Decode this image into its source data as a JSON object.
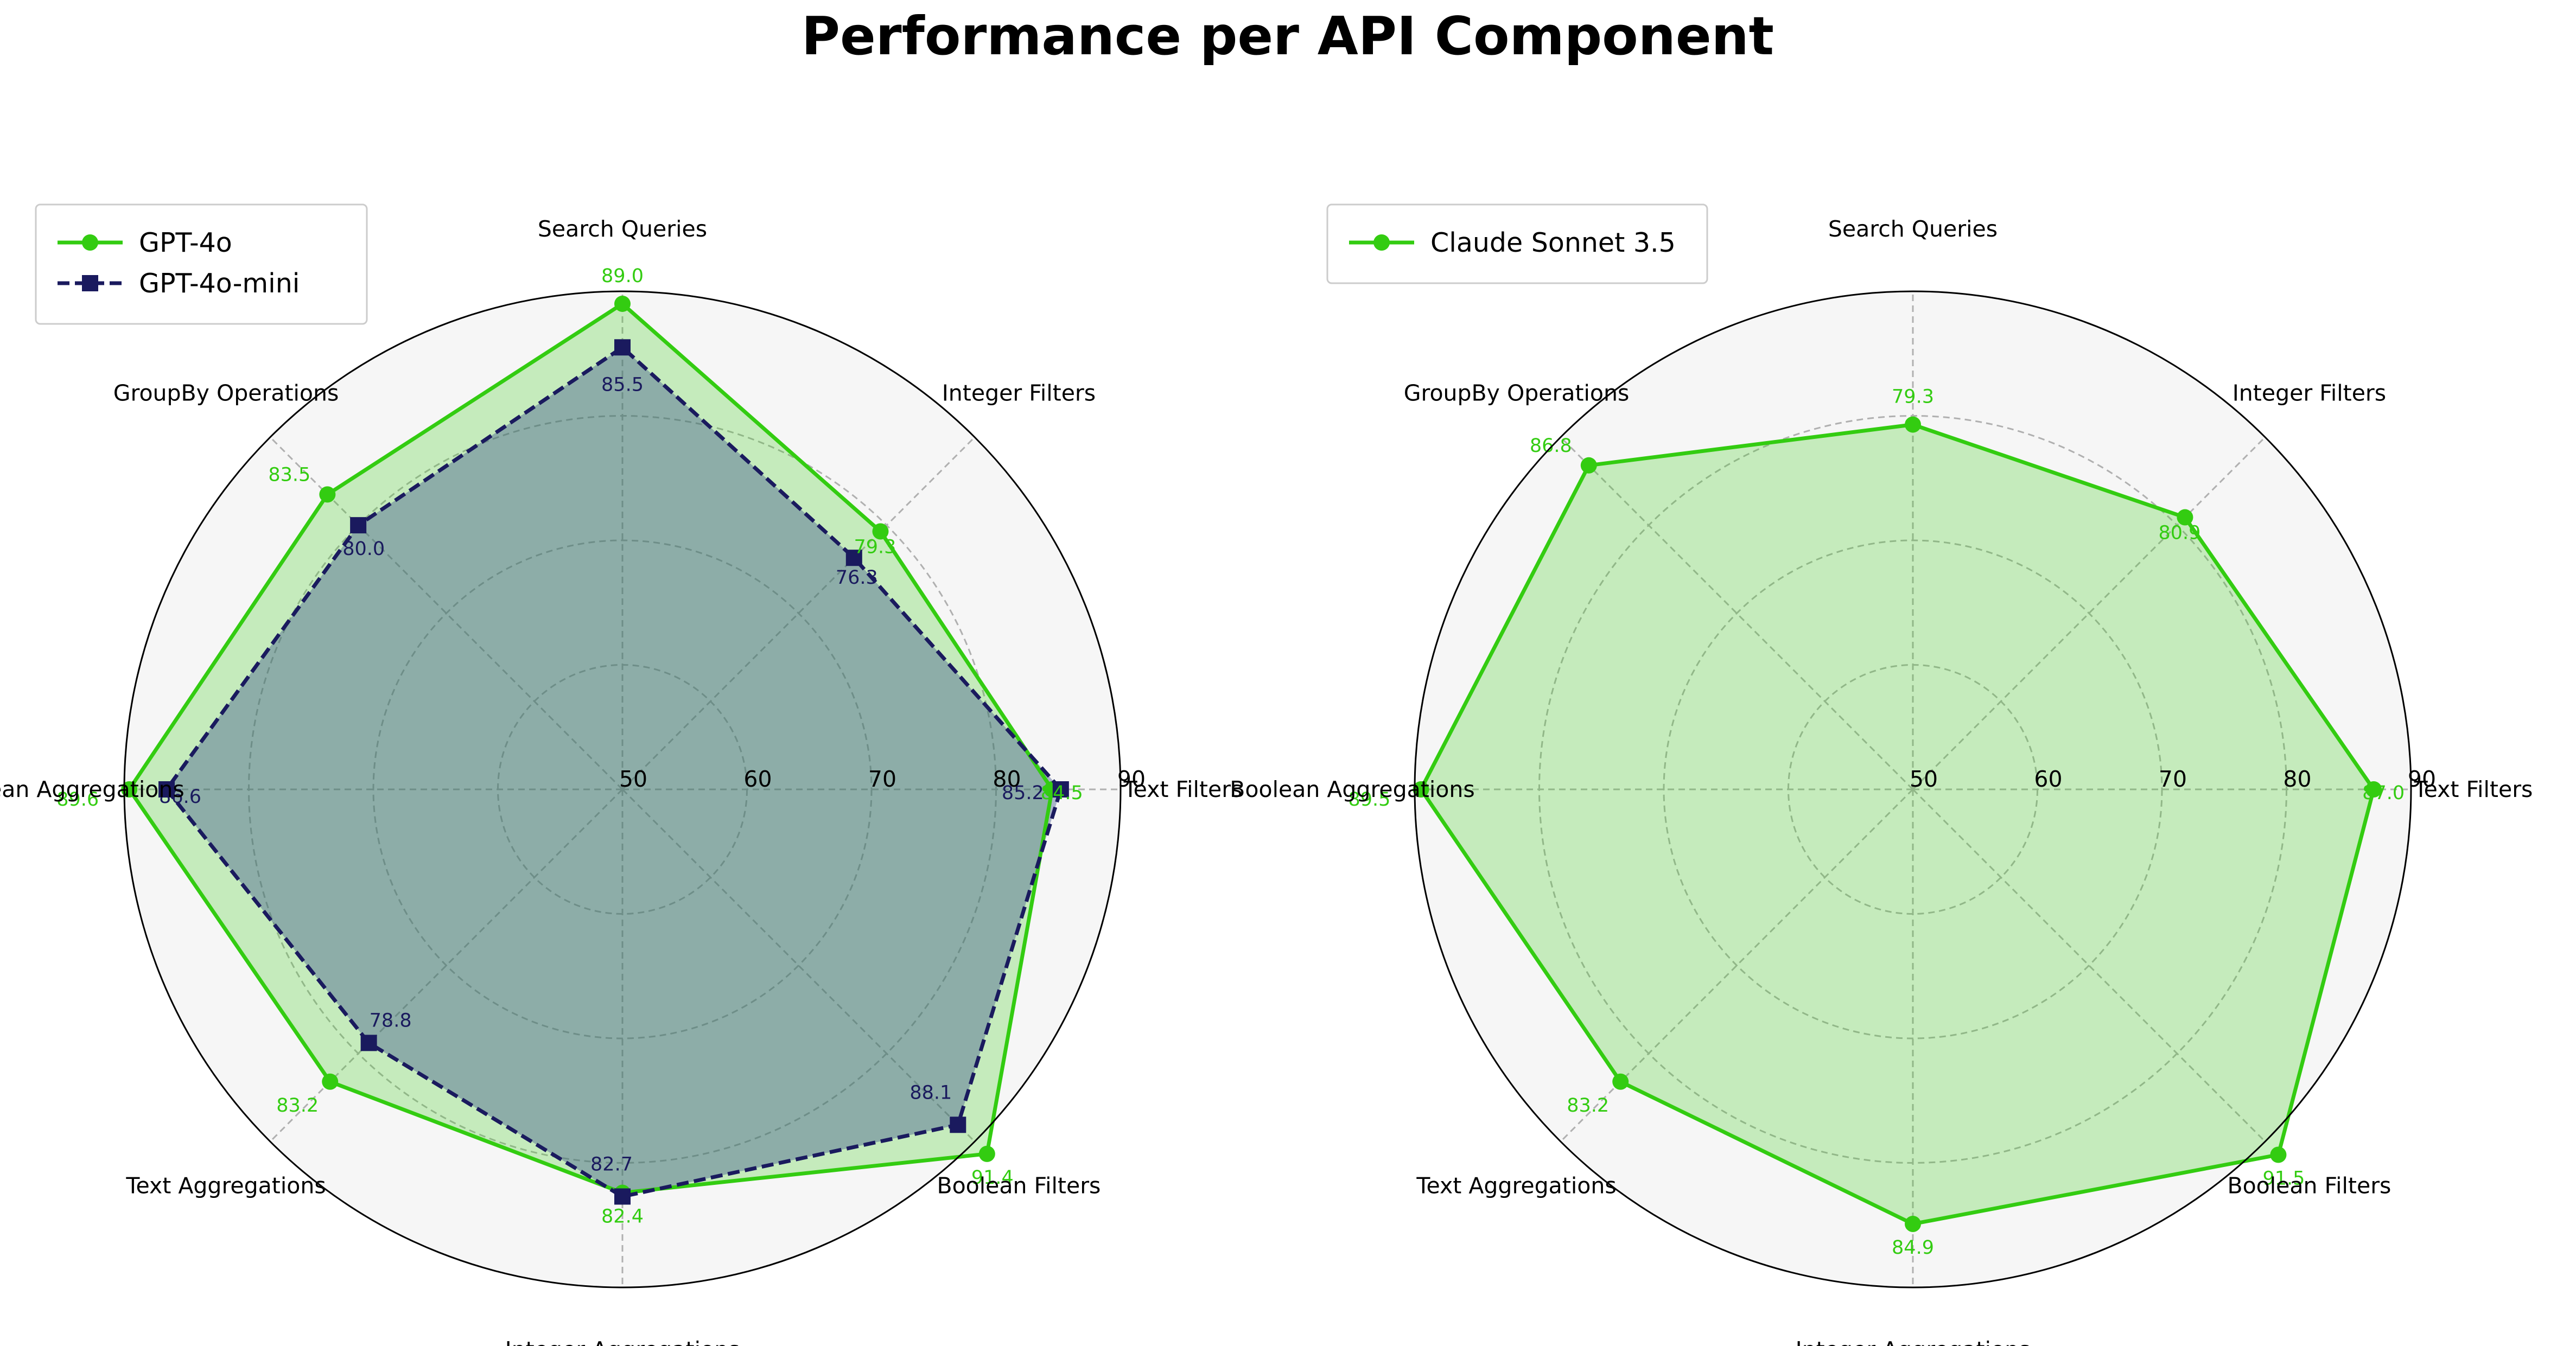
{
  "title": "Performance per API Component",
  "chart_data": [
    {
      "type": "radar",
      "categories": [
        "Text Filters",
        "Integer Filters",
        "Search Queries",
        "GroupBy Operations",
        "Boolean Aggregations",
        "Text Aggregations",
        "Integer Aggregations",
        "Boolean Filters"
      ],
      "rlim": [
        50,
        90
      ],
      "rticks": [
        50,
        60,
        70,
        80,
        90
      ],
      "grid": true,
      "legend": "top-left",
      "series": [
        {
          "name": "GPT-4o",
          "values": [
            84.5,
            79.3,
            89.0,
            83.5,
            89.6,
            83.2,
            82.4,
            91.4
          ],
          "labels": [
            "84.5",
            "79.3",
            "89.0",
            "83.5",
            "89.6",
            "83.2",
            "82.4",
            "91.4"
          ],
          "color": "#33cc11",
          "marker": "circle",
          "linestyle": "solid",
          "fill": "#33cc11"
        },
        {
          "name": "GPT-4o-mini",
          "values": [
            85.2,
            76.3,
            85.5,
            80.0,
            86.6,
            78.8,
            82.7,
            88.1
          ],
          "labels": [
            "85.2",
            "76.3",
            "85.5",
            "80.0",
            "86.6",
            "78.8",
            "82.7",
            "88.1"
          ],
          "color": "#1a1a5e",
          "marker": "square",
          "linestyle": "dashed",
          "fill": "#3a4f8a"
        }
      ]
    },
    {
      "type": "radar",
      "categories": [
        "Text Filters",
        "Integer Filters",
        "Search Queries",
        "GroupBy Operations",
        "Boolean Aggregations",
        "Text Aggregations",
        "Integer Aggregations",
        "Boolean Filters"
      ],
      "rlim": [
        50,
        90
      ],
      "rticks": [
        50,
        60,
        70,
        80,
        90
      ],
      "grid": true,
      "legend": "top-left",
      "series": [
        {
          "name": "Claude Sonnet 3.5",
          "values": [
            87.0,
            80.9,
            79.3,
            86.8,
            89.5,
            83.2,
            84.9,
            91.5
          ],
          "labels": [
            "87.0",
            "80.9",
            "79.3",
            "86.8",
            "89.5",
            "83.2",
            "84.9",
            "91.5"
          ],
          "color": "#33cc11",
          "marker": "circle",
          "linestyle": "solid",
          "fill": "#33cc11"
        }
      ]
    }
  ]
}
